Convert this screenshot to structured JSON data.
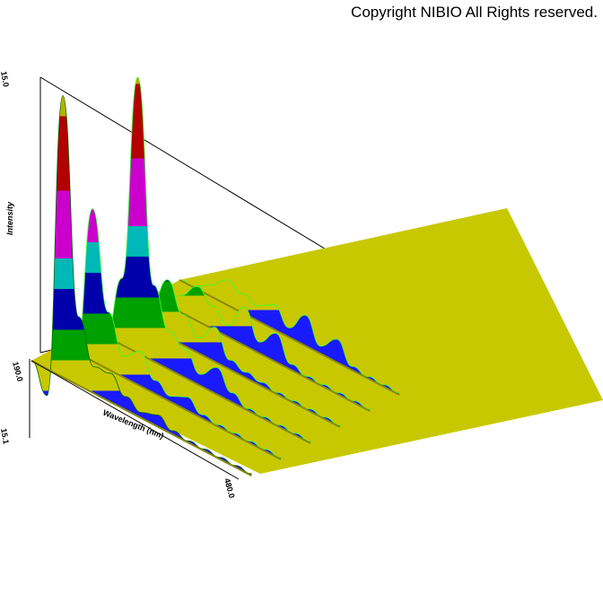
{
  "copyright": "Copyright NIBIO All Rights reserved.",
  "chart_data": {
    "type": "area",
    "subtype": "3d-fluorescence-surface",
    "title": "",
    "ylabel": "Intensity",
    "xlabel": "Wavelength (nm)",
    "z_ticks": {
      "top": "15.0",
      "bottom": "15.1"
    },
    "x_ticks": {
      "start": "190.0",
      "end": "480.0"
    },
    "xlim": [
      190,
      480
    ],
    "zlim": [
      -1.5,
      15.0
    ],
    "band_colors": [
      "#1a1aff",
      "#00a000",
      "#0000aa",
      "#00b8b8",
      "#cc00cc",
      "#b30000",
      "#b3b300"
    ],
    "floor_color": "#c8c800",
    "series": [
      {
        "values": [
          0,
          -1.4,
          14.8,
          3.6,
          1.4,
          1.5,
          0.7,
          0.3,
          0.6,
          0.2,
          0.1,
          0.1,
          0.1,
          0.1,
          0.1
        ]
      },
      {
        "values": [
          0,
          0.1,
          8.0,
          3.0,
          1.1,
          1.8,
          0.7,
          0.3,
          0.7,
          0.2,
          0.1,
          0.1,
          0.1,
          0.1,
          0.1
        ]
      },
      {
        "values": [
          0,
          0.1,
          3.5,
          14.5,
          4.0,
          2.0,
          1.5,
          0.6,
          1.4,
          0.5,
          0.1,
          0.1,
          0.1,
          0.1,
          0.1
        ]
      },
      {
        "values": [
          0,
          0.1,
          1.2,
          3.0,
          1.6,
          0.8,
          1.8,
          0.5,
          0.3,
          0.2,
          0.1,
          0.1,
          0.1,
          0.1,
          0.1
        ]
      },
      {
        "values": [
          0,
          0.1,
          0.9,
          1.8,
          1.2,
          0.6,
          2.0,
          0.6,
          1.5,
          0.3,
          0.1,
          0.1,
          0.1,
          0.1,
          0.1
        ]
      },
      {
        "values": [
          0,
          0.1,
          0.6,
          1.3,
          1.0,
          0.8,
          1.3,
          0.5,
          1.6,
          0.4,
          1.2,
          0.2,
          0.1,
          0.1,
          0.1
        ]
      }
    ]
  }
}
